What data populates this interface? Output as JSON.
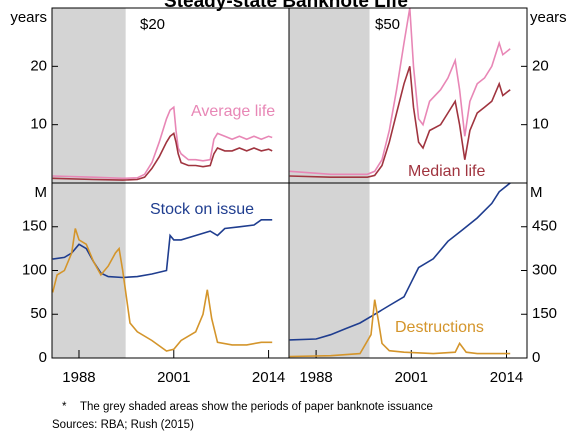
{
  "title": "Steady-state Banknote Life",
  "footnote_mark": "*",
  "footnote": "The grey shaded areas show the periods of paper banknote issuance",
  "sources": "Sources:  RBA; Rush (2015)",
  "chart_data": [
    {
      "type": "line",
      "title": "$20",
      "ylabel": "years",
      "xlim": [
        1984.3,
        2016.8
      ],
      "ylim": [
        0,
        30
      ],
      "yticks": [
        10,
        20
      ],
      "shaded": [
        1984.3,
        1994.4
      ],
      "series": [
        {
          "name": "Average life",
          "color": "#e887b6",
          "x": [
            1984.4,
            1990,
            1994,
            1996,
            1997,
            1998,
            1999,
            2000,
            2000.5,
            2001,
            2001.3,
            2001.6,
            2002,
            2003,
            2004,
            2005,
            2006,
            2006.5,
            2007,
            2008,
            2009,
            2010,
            2011,
            2012,
            2013,
            2014,
            2014.5
          ],
          "values": [
            1.2,
            1.0,
            0.8,
            0.9,
            1.5,
            3.5,
            7,
            11,
            12.5,
            13,
            9,
            6,
            5,
            4,
            4,
            3.8,
            4,
            7.5,
            8.5,
            8,
            7.5,
            8,
            7.5,
            8,
            7.5,
            8,
            7.8
          ]
        },
        {
          "color": "#a0343f",
          "x": [
            1984.4,
            1990,
            1994,
            1996,
            1997,
            1998,
            1999,
            2000,
            2000.5,
            2001,
            2001.3,
            2001.6,
            2002,
            2003,
            2004,
            2005,
            2006,
            2006.5,
            2007,
            2008,
            2009,
            2010,
            2011,
            2012,
            2013,
            2014,
            2014.5
          ],
          "values": [
            0.8,
            0.6,
            0.5,
            0.6,
            1,
            2.5,
            4.5,
            7,
            8,
            8.5,
            7,
            5,
            3.5,
            3,
            3,
            2.8,
            3,
            5,
            6,
            5.5,
            5.5,
            6,
            5.5,
            6,
            5.5,
            5.8,
            5.5
          ]
        }
      ]
    },
    {
      "type": "line",
      "title": "$50",
      "y2label": "years",
      "xlim": [
        1984.3,
        2016.8
      ],
      "y2lim": [
        0,
        30
      ],
      "y2ticks": [
        10,
        20
      ],
      "shaded": [
        1984.3,
        1995.3
      ],
      "series": [
        {
          "color": "#e887b6",
          "axis": "y2",
          "x": [
            1984.4,
            1990,
            1995,
            1996,
            1997,
            1998,
            1999,
            2000,
            2000.8,
            2001.3,
            2002,
            2002.6,
            2003.5,
            2005,
            2006,
            2007,
            2007.6,
            2008.3,
            2009,
            2010,
            2011,
            2012,
            2013,
            2013.5,
            2014.5
          ],
          "values": [
            2,
            1.5,
            1.5,
            2,
            4,
            9,
            16,
            24,
            30,
            20,
            11,
            10,
            14,
            16,
            18,
            21,
            16,
            8,
            14,
            17,
            18,
            20,
            24,
            22,
            23
          ]
        },
        {
          "name": "Median life",
          "color": "#a0343f",
          "axis": "y2",
          "x": [
            1984.4,
            1990,
            1995,
            1996,
            1997,
            1998,
            1999,
            2000,
            2000.8,
            2001.3,
            2002,
            2002.6,
            2003.5,
            2005,
            2006,
            2007,
            2007.6,
            2008.3,
            2009,
            2010,
            2011,
            2012,
            2013,
            2013.5,
            2014.5
          ],
          "values": [
            1.2,
            1,
            1,
            1.3,
            3,
            7,
            12,
            17,
            20,
            13,
            7,
            6,
            9,
            10,
            12,
            14,
            10,
            4,
            9,
            12,
            13,
            14,
            17,
            15,
            16
          ]
        }
      ]
    },
    {
      "type": "line",
      "ylabel": "M",
      "xlim": [
        1984.3,
        2016.8
      ],
      "ylim": [
        0,
        200
      ],
      "yticks": [
        0,
        50,
        100,
        150
      ],
      "xticks": [
        1988,
        2001,
        2014
      ],
      "shaded": [
        1984.3,
        1994.4
      ],
      "series": [
        {
          "name": "Stock on issue",
          "color": "#1f3d8f",
          "x": [
            1984.4,
            1986,
            1987,
            1988,
            1989,
            1990,
            1991,
            1992,
            1994,
            1996,
            1998,
            2000,
            2000.5,
            2001,
            2002,
            2004,
            2006,
            2007,
            2008,
            2010,
            2012,
            2013,
            2014.5
          ],
          "values": [
            113,
            115,
            120,
            130,
            125,
            110,
            97,
            93,
            92,
            93,
            96,
            100,
            140,
            135,
            135,
            140,
            145,
            140,
            148,
            150,
            152,
            158,
            158
          ]
        },
        {
          "color": "#d4952b",
          "x": [
            1984.4,
            1985,
            1986,
            1987,
            1987.5,
            1988,
            1989,
            1990,
            1991,
            1992,
            1993,
            1993.5,
            1994,
            1995,
            1996,
            1998,
            2000,
            2001,
            2002,
            2004,
            2005,
            2005.6,
            2006.2,
            2007,
            2009,
            2011,
            2013,
            2014.5
          ],
          "values": [
            75,
            95,
            100,
            120,
            148,
            135,
            130,
            110,
            95,
            105,
            120,
            125,
            100,
            40,
            30,
            20,
            8,
            10,
            20,
            30,
            50,
            78,
            45,
            18,
            15,
            15,
            18,
            18
          ]
        }
      ]
    },
    {
      "type": "line",
      "y2label": "M",
      "xlim": [
        1984.3,
        2016.8
      ],
      "y2lim": [
        0,
        600
      ],
      "y2ticks": [
        0,
        150,
        300,
        450
      ],
      "xticks": [
        1988,
        2001,
        2014
      ],
      "shaded": [
        1984.3,
        1995.3
      ],
      "series": [
        {
          "color": "#1f3d8f",
          "axis": "y2",
          "x": [
            1984.4,
            1988,
            1990,
            1992,
            1994,
            1996,
            1998,
            2000,
            2001,
            2002,
            2004,
            2006,
            2008,
            2010,
            2012,
            2013,
            2014.5
          ],
          "values": [
            62,
            65,
            80,
            100,
            120,
            150,
            180,
            210,
            260,
            310,
            340,
            400,
            440,
            480,
            530,
            570,
            600
          ]
        },
        {
          "name": "Destructions",
          "color": "#d4952b",
          "axis": "y2",
          "x": [
            1984.4,
            1990,
            1994,
            1995.5,
            1996,
            1996.5,
            1997,
            1998,
            2000,
            2004,
            2007,
            2007.6,
            2008.5,
            2010,
            2014.5
          ],
          "values": [
            5,
            8,
            15,
            80,
            200,
            130,
            50,
            25,
            20,
            15,
            20,
            50,
            20,
            15,
            15
          ]
        }
      ]
    }
  ]
}
